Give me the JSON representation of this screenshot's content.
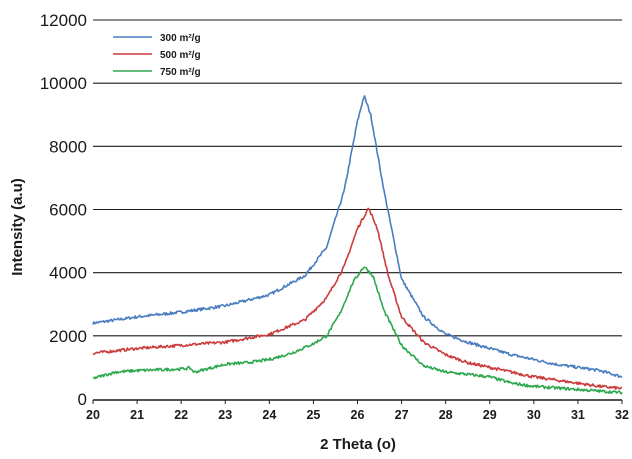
{
  "chart_data": {
    "type": "line",
    "title": "",
    "xlabel": "2 Theta (o)",
    "ylabel": "Intensity (a.u)",
    "xlim": [
      20,
      32
    ],
    "ylim": [
      0,
      12000
    ],
    "x_ticks": [
      "20",
      "21",
      "22",
      "23",
      "24",
      "25",
      "26",
      "27",
      "28",
      "29",
      "30",
      "31",
      "32"
    ],
    "y_ticks": [
      "0",
      "2000",
      "4000",
      "6000",
      "8000",
      "10000",
      "12000"
    ],
    "grid": "horizontal",
    "legend_position": "top-left",
    "series": [
      {
        "name": "300 m²/g",
        "color": "#4a7cc0",
        "points": [
          [
            20,
            2400
          ],
          [
            21,
            2600
          ],
          [
            22,
            2750
          ],
          [
            23,
            2950
          ],
          [
            24,
            3300
          ],
          [
            24.8,
            3900
          ],
          [
            25.3,
            4800
          ],
          [
            25.7,
            6600
          ],
          [
            26.0,
            8800
          ],
          [
            26.15,
            9600
          ],
          [
            26.3,
            9000
          ],
          [
            26.6,
            6600
          ],
          [
            27.0,
            3800
          ],
          [
            27.5,
            2600
          ],
          [
            28,
            2050
          ],
          [
            28.5,
            1800
          ],
          [
            29,
            1600
          ],
          [
            29.5,
            1400
          ],
          [
            30,
            1250
          ],
          [
            30.5,
            1100
          ],
          [
            31,
            1000
          ],
          [
            31.5,
            900
          ],
          [
            32,
            700
          ]
        ]
      },
      {
        "name": "500 m²/g",
        "color": "#cc3b3b",
        "points": [
          [
            20,
            1450
          ],
          [
            21,
            1600
          ],
          [
            22,
            1700
          ],
          [
            23,
            1800
          ],
          [
            24,
            2050
          ],
          [
            24.8,
            2500
          ],
          [
            25.3,
            3200
          ],
          [
            25.7,
            4200
          ],
          [
            26.0,
            5400
          ],
          [
            26.25,
            6050
          ],
          [
            26.45,
            5400
          ],
          [
            26.7,
            3900
          ],
          [
            27.0,
            2600
          ],
          [
            27.5,
            1800
          ],
          [
            28,
            1400
          ],
          [
            28.5,
            1150
          ],
          [
            29,
            1000
          ],
          [
            29.5,
            850
          ],
          [
            30,
            700
          ],
          [
            30.5,
            600
          ],
          [
            31,
            500
          ],
          [
            31.5,
            400
          ],
          [
            32,
            330
          ]
        ]
      },
      {
        "name": "750 m²/g",
        "color": "#2ea84f",
        "points": [
          [
            20,
            650
          ],
          [
            20.5,
            850
          ],
          [
            21,
            900
          ],
          [
            22,
            950
          ],
          [
            22.2,
            980
          ],
          [
            22.3,
            850
          ],
          [
            23,
            1100
          ],
          [
            23.5,
            1150
          ],
          [
            24,
            1250
          ],
          [
            24.5,
            1450
          ],
          [
            25,
            1750
          ],
          [
            25.3,
            2000
          ],
          [
            25.6,
            2700
          ],
          [
            25.9,
            3700
          ],
          [
            26.15,
            4200
          ],
          [
            26.35,
            3900
          ],
          [
            26.6,
            2800
          ],
          [
            27.0,
            1700
          ],
          [
            27.5,
            1050
          ],
          [
            28,
            850
          ],
          [
            28.5,
            780
          ],
          [
            29,
            700
          ],
          [
            29.5,
            500
          ],
          [
            30,
            400
          ],
          [
            30.5,
            350
          ],
          [
            31,
            300
          ],
          [
            31.5,
            250
          ],
          [
            32,
            200
          ]
        ]
      }
    ]
  }
}
